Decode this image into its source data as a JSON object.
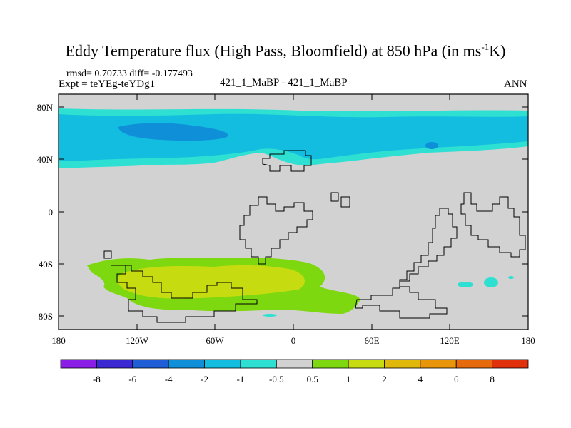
{
  "title": {
    "main": "Eddy Temperature flux (High Pass, Bloomfield) at 850 hPa (in ms",
    "sup": "-1",
    "end": "K)"
  },
  "header": {
    "stats": "rmsd= 0.70733 diff= -0.177493",
    "expt": "Expt = teYEg-teYDg1",
    "center": "421_1_MaBP - 421_1_MaBP",
    "season": "ANN"
  },
  "axes": {
    "lat_labels": [
      "80N",
      "40N",
      "0",
      "40S",
      "80S"
    ],
    "lon_labels": [
      "180",
      "120W",
      "60W",
      "0",
      "60E",
      "120E",
      "180"
    ]
  },
  "colorbar": {
    "labels": [
      "-8",
      "-6",
      "-4",
      "-2",
      "-1",
      "-0.5",
      "0.5",
      "1",
      "2",
      "4",
      "6",
      "8"
    ],
    "colors": [
      "#8a1ee6",
      "#3c28d2",
      "#1f5ed6",
      "#0f8fd8",
      "#12bde0",
      "#2ee0d2",
      "#d2d2d2",
      "#7dd80f",
      "#c6dc10",
      "#e0b80a",
      "#e8950a",
      "#e66a0c",
      "#e0300c"
    ]
  },
  "palette": {
    "ocean_gray": "#d2d2d2",
    "cyan_light": "#2ee0d2",
    "cyan": "#12bde0",
    "blue": "#0f8fd8",
    "green": "#7dd80f",
    "yellow": "#c6dc10"
  }
}
